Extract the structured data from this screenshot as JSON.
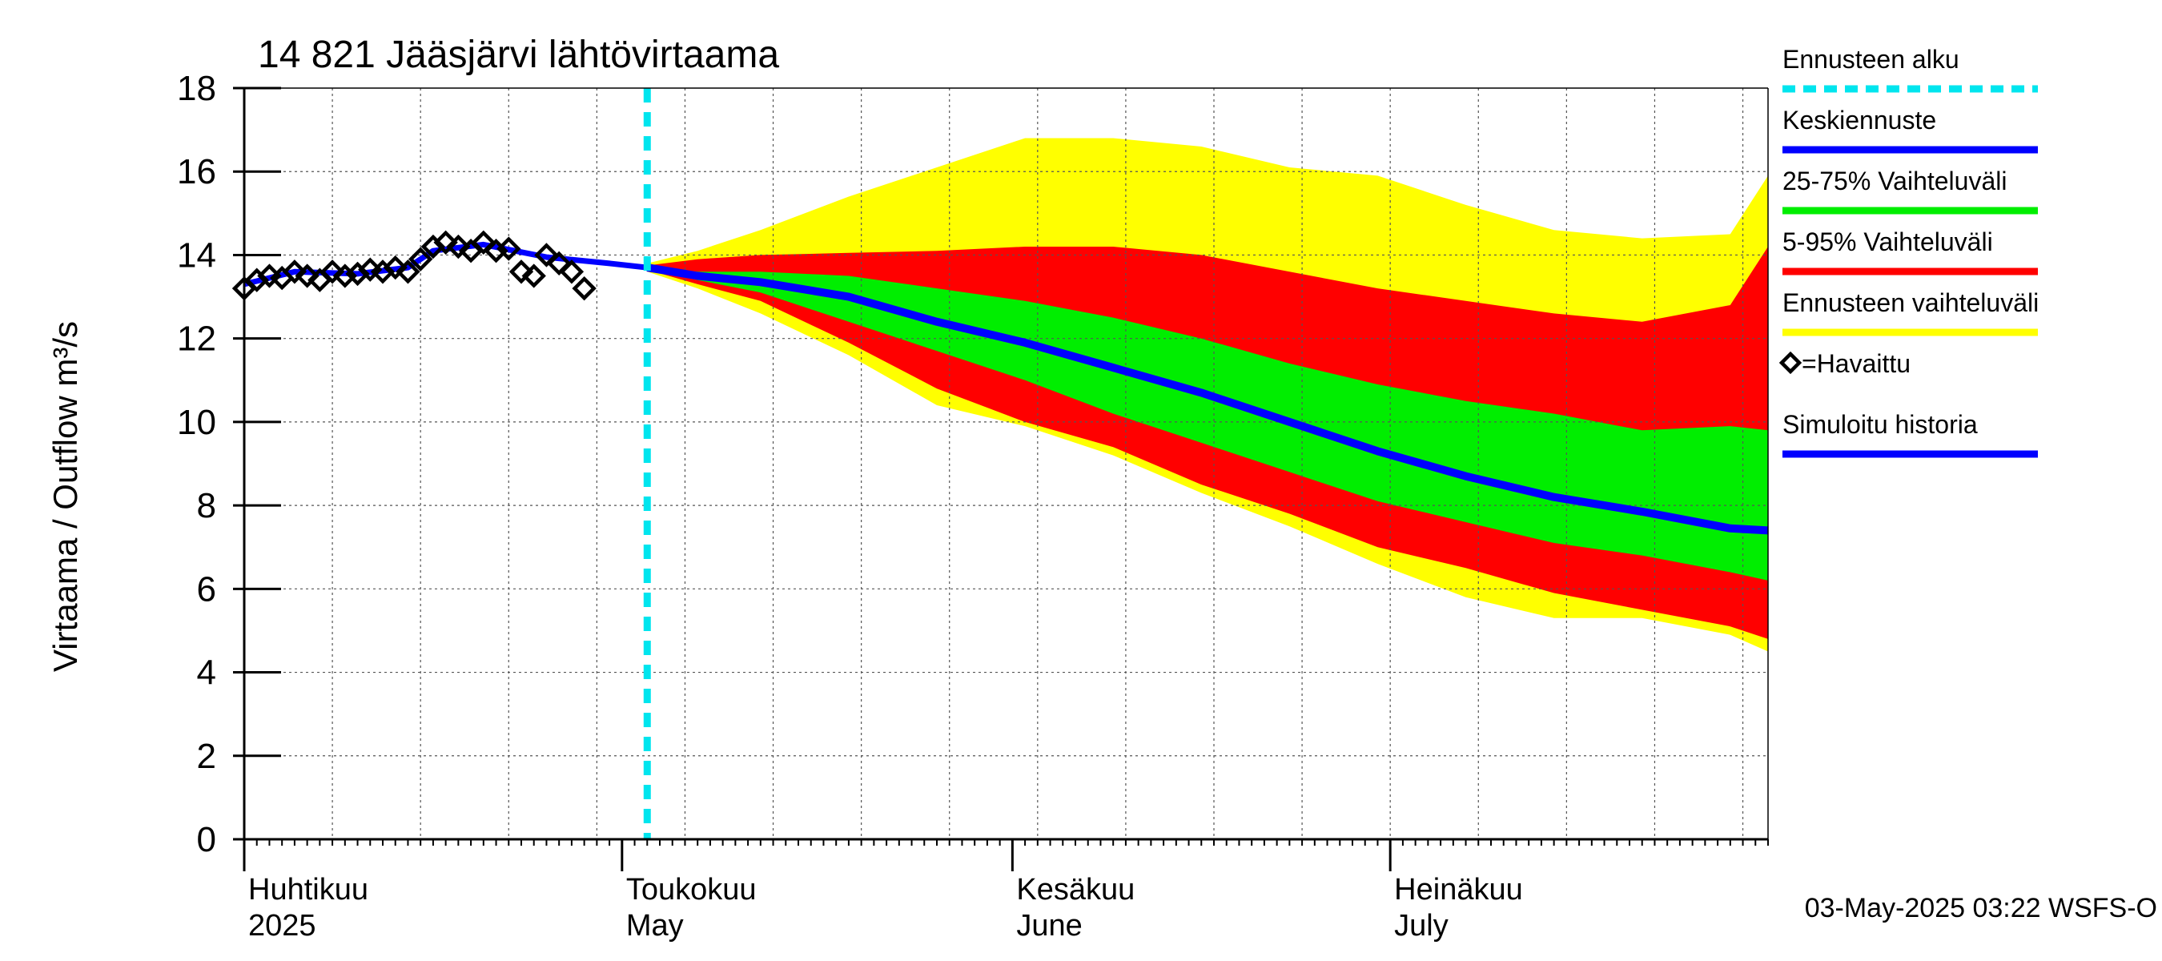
{
  "chart_data": {
    "type": "area",
    "title": "14 821 Jääsjärvi lähtövirtaama",
    "ylabel": "Virtaama / Outflow    m³/s",
    "ylim": [
      0,
      18
    ],
    "yticks": [
      0,
      2,
      4,
      6,
      8,
      10,
      12,
      14,
      16,
      18
    ],
    "x_range": [
      "2025-04-01",
      "2025-07-31"
    ],
    "grid": true,
    "legend_placement": "right",
    "month_labels": [
      {
        "date": "2025-04-01",
        "fi": "Huhtikuu",
        "en": "2025"
      },
      {
        "date": "2025-05-01",
        "fi": "Toukokuu",
        "en": "May"
      },
      {
        "date": "2025-06-01",
        "fi": "Kesäkuu",
        "en": "June"
      },
      {
        "date": "2025-07-01",
        "fi": "Heinäkuu",
        "en": "July"
      }
    ],
    "forecast_start": "2025-05-03",
    "legend": [
      {
        "key": "forecast_start",
        "label": "Ennusteen alku",
        "color": "#00e5ee",
        "style": "dashed"
      },
      {
        "key": "median",
        "label": "Keskiennuste",
        "color": "#0000ff",
        "style": "line"
      },
      {
        "key": "p25_75",
        "label": "25-75% Vaihteluväli",
        "color": "#00ee00",
        "style": "line"
      },
      {
        "key": "p5_95",
        "label": "5-95% Vaihteluväli",
        "color": "#ff0000",
        "style": "line"
      },
      {
        "key": "range",
        "label": "Ennusteen vaihteluväli",
        "color": "#ffff00",
        "style": "line"
      },
      {
        "key": "observed",
        "label": "=Havaittu",
        "color": "#000000",
        "style": "diamond"
      },
      {
        "key": "simulated",
        "label": "Simuloitu historia",
        "color": "#0000ff",
        "style": "line"
      }
    ],
    "colors": {
      "range": "#ffff00",
      "p5_95": "#ff0000",
      "p25_75": "#00ee00",
      "median": "#0000ff",
      "simulated": "#0000ff",
      "forecast_start": "#00e5ee",
      "observed": "#000000"
    },
    "observed": {
      "dates": [
        "2025-04-01",
        "2025-04-02",
        "2025-04-03",
        "2025-04-04",
        "2025-04-05",
        "2025-04-06",
        "2025-04-07",
        "2025-04-08",
        "2025-04-09",
        "2025-04-10",
        "2025-04-11",
        "2025-04-12",
        "2025-04-13",
        "2025-04-14",
        "2025-04-15",
        "2025-04-16",
        "2025-04-17",
        "2025-04-18",
        "2025-04-19",
        "2025-04-20",
        "2025-04-21",
        "2025-04-22",
        "2025-04-23",
        "2025-04-24",
        "2025-04-25",
        "2025-04-26",
        "2025-04-27",
        "2025-04-28",
        "2025-04-29",
        "2025-04-30"
      ],
      "values": [
        13.2,
        13.4,
        13.5,
        13.45,
        13.6,
        13.5,
        13.4,
        13.6,
        13.5,
        13.55,
        13.65,
        13.6,
        13.7,
        13.6,
        13.9,
        14.2,
        14.3,
        14.2,
        14.1,
        14.3,
        14.1,
        14.15,
        13.6,
        13.5,
        14.0,
        13.8,
        13.6,
        13.2,
        null,
        null
      ]
    },
    "simulated": {
      "dates": [
        "2025-04-01",
        "2025-04-05",
        "2025-04-10",
        "2025-04-14",
        "2025-04-16",
        "2025-04-20",
        "2025-04-25",
        "2025-04-30",
        "2025-05-03"
      ],
      "values": [
        13.3,
        13.6,
        13.55,
        13.7,
        14.1,
        14.25,
        13.95,
        13.8,
        13.7
      ]
    },
    "forecast": {
      "dates": [
        "2025-05-03",
        "2025-05-07",
        "2025-05-12",
        "2025-05-19",
        "2025-05-26",
        "2025-06-02",
        "2025-06-09",
        "2025-06-16",
        "2025-06-23",
        "2025-06-30",
        "2025-07-07",
        "2025-07-14",
        "2025-07-21",
        "2025-07-28",
        "2025-07-31"
      ],
      "range_max": [
        13.8,
        14.1,
        14.6,
        15.4,
        16.1,
        16.8,
        16.8,
        16.6,
        16.1,
        15.9,
        15.2,
        14.6,
        14.4,
        14.5,
        15.9
      ],
      "p95": [
        13.75,
        13.9,
        14.0,
        14.05,
        14.1,
        14.2,
        14.2,
        14.0,
        13.6,
        13.2,
        12.9,
        12.6,
        12.4,
        12.8,
        14.2
      ],
      "p75": [
        13.72,
        13.6,
        13.6,
        13.5,
        13.2,
        12.9,
        12.5,
        12.0,
        11.4,
        10.9,
        10.5,
        10.2,
        9.8,
        9.9,
        9.8
      ],
      "median": [
        13.7,
        13.5,
        13.35,
        13.0,
        12.4,
        11.9,
        11.3,
        10.7,
        10.0,
        9.3,
        8.7,
        8.2,
        7.85,
        7.45,
        7.4
      ],
      "p25": [
        13.68,
        13.4,
        13.1,
        12.4,
        11.7,
        11.0,
        10.2,
        9.5,
        8.8,
        8.1,
        7.6,
        7.1,
        6.8,
        6.4,
        6.2
      ],
      "p5": [
        13.65,
        13.3,
        12.9,
        11.9,
        10.8,
        10.0,
        9.4,
        8.5,
        7.8,
        7.0,
        6.5,
        5.9,
        5.5,
        5.1,
        4.8
      ],
      "range_min": [
        13.6,
        13.2,
        12.6,
        11.6,
        10.4,
        9.9,
        9.2,
        8.3,
        7.5,
        6.6,
        5.8,
        5.3,
        5.3,
        4.9,
        4.5
      ]
    },
    "footer": "03-May-2025 03:22 WSFS-O"
  }
}
